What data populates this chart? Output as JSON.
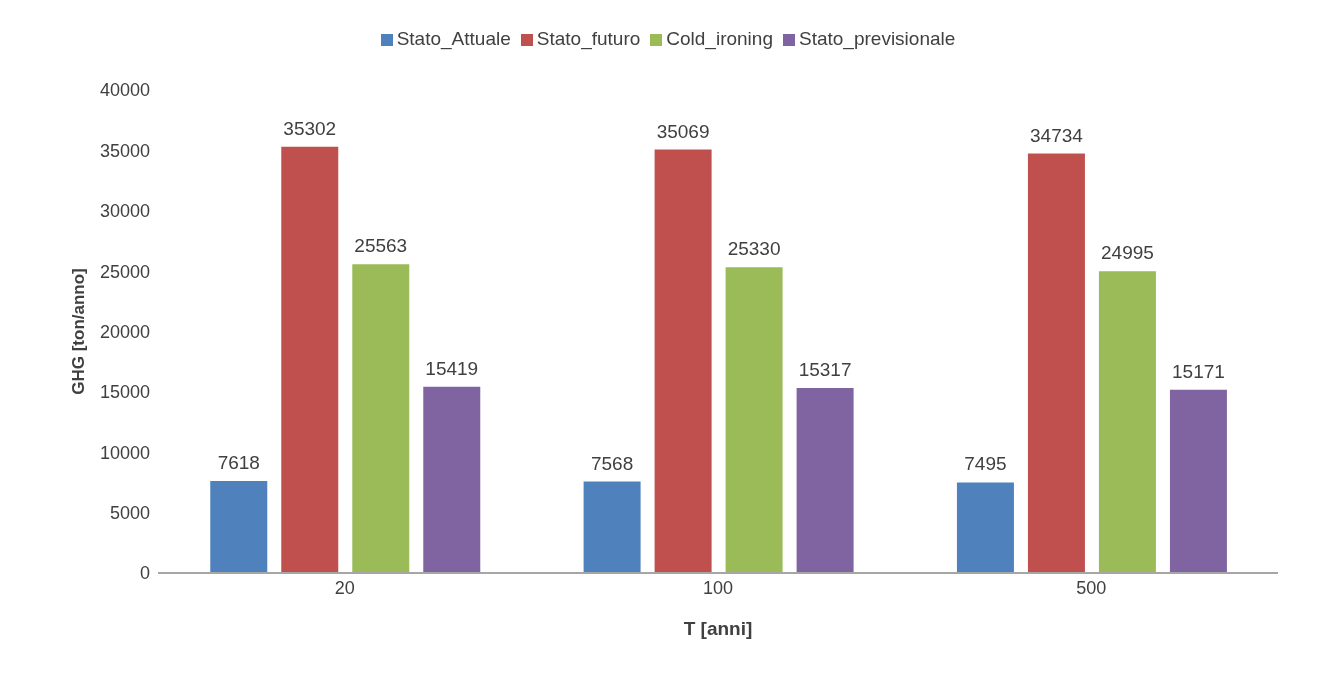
{
  "chart_data": {
    "type": "bar",
    "xlabel": "T [anni]",
    "ylabel": "GHG [ton/anno]",
    "categories": [
      "20",
      "100",
      "500"
    ],
    "series": [
      {
        "name": "Stato_Attuale",
        "color": "#4f81bd",
        "values": [
          7618,
          7568,
          7495
        ]
      },
      {
        "name": "Stato_futuro",
        "color": "#c0504d",
        "values": [
          35302,
          35069,
          34734
        ]
      },
      {
        "name": "Cold_ironing",
        "color": "#9bbb59",
        "values": [
          25563,
          25330,
          24995
        ]
      },
      {
        "name": "Stato_previsionale",
        "color": "#8064a2",
        "values": [
          15419,
          15317,
          15171
        ]
      }
    ],
    "ylim": [
      0,
      40000
    ],
    "yticks": [
      0,
      5000,
      10000,
      15000,
      20000,
      25000,
      30000,
      35000,
      40000
    ],
    "grid": false,
    "legend": "top",
    "data_labels": true
  }
}
